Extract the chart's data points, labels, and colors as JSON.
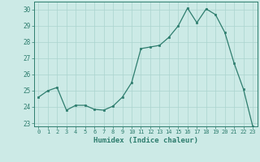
{
  "x": [
    0,
    1,
    2,
    3,
    4,
    5,
    6,
    7,
    8,
    9,
    10,
    11,
    12,
    13,
    14,
    15,
    16,
    17,
    18,
    19,
    20,
    21,
    22,
    23
  ],
  "y": [
    24.6,
    25.0,
    25.2,
    23.8,
    24.1,
    24.1,
    23.85,
    23.8,
    24.05,
    24.6,
    25.5,
    27.6,
    27.7,
    27.8,
    28.3,
    29.0,
    30.1,
    29.2,
    30.05,
    29.7,
    28.6,
    26.7,
    25.1,
    22.8
  ],
  "xlabel": "Humidex (Indice chaleur)",
  "ylim": [
    22.8,
    30.5
  ],
  "xlim": [
    -0.5,
    23.5
  ],
  "yticks": [
    23,
    24,
    25,
    26,
    27,
    28,
    29,
    30
  ],
  "xticks": [
    0,
    1,
    2,
    3,
    4,
    5,
    6,
    7,
    8,
    9,
    10,
    11,
    12,
    13,
    14,
    15,
    16,
    17,
    18,
    19,
    20,
    21,
    22,
    23
  ],
  "line_color": "#2e7d6e",
  "marker_color": "#2e7d6e",
  "bg_color": "#cceae6",
  "grid_color": "#aad4ce",
  "tick_color": "#2e7d6e",
  "label_color": "#2e7d6e",
  "spine_color": "#2e7d6e"
}
